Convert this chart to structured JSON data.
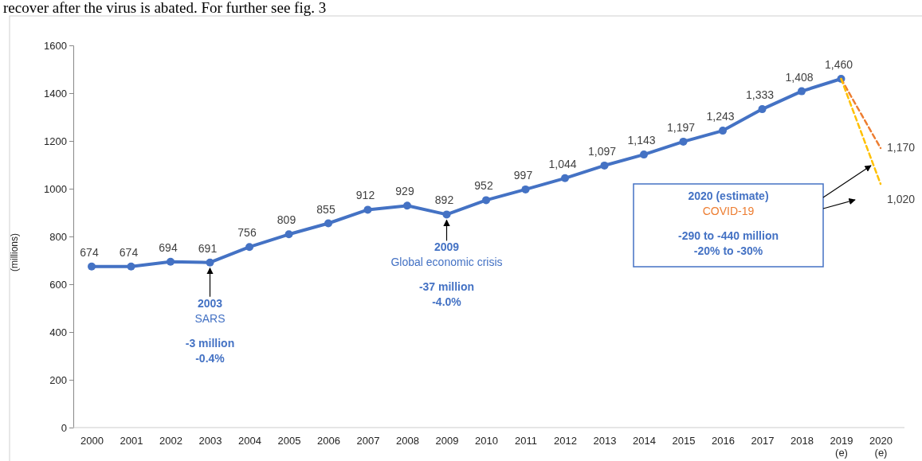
{
  "chart_data": {
    "type": "line",
    "ylabel": "(millions)",
    "categories": [
      "2000",
      "2001",
      "2002",
      "2003",
      "2004",
      "2005",
      "2006",
      "2007",
      "2008",
      "2009",
      "2010",
      "2011",
      "2012",
      "2013",
      "2014",
      "2015",
      "2016",
      "2017",
      "2018",
      "2019 (e)",
      "2020 (e)"
    ],
    "series": [
      {
        "color": "#4472c4",
        "marker": "circle",
        "line_style": "solid",
        "values": [
          674,
          674,
          694,
          691,
          756,
          809,
          855,
          912,
          929,
          892,
          952,
          997,
          1044,
          1097,
          1143,
          1197,
          1243,
          1333,
          1408,
          1460,
          null
        ],
        "value_labels": [
          "674",
          "674",
          "694",
          "691",
          "756",
          "809",
          "855",
          "912",
          "929",
          "892",
          "952",
          "997",
          "1,044",
          "1,097",
          "1,143",
          "1,197",
          "1,243",
          "1,333",
          "1,408",
          "1,460",
          null
        ]
      },
      {
        "color": "#ed7d31",
        "marker": "none",
        "line_style": "dashed",
        "values": [
          null,
          null,
          null,
          null,
          null,
          null,
          null,
          null,
          null,
          null,
          null,
          null,
          null,
          null,
          null,
          null,
          null,
          null,
          null,
          1460,
          1170
        ],
        "value_labels": [
          null,
          null,
          null,
          null,
          null,
          null,
          null,
          null,
          null,
          null,
          null,
          null,
          null,
          null,
          null,
          null,
          null,
          null,
          null,
          null,
          "1,170"
        ]
      },
      {
        "color": "#ffc000",
        "marker": "none",
        "line_style": "dashed",
        "values": [
          null,
          null,
          null,
          null,
          null,
          null,
          null,
          null,
          null,
          null,
          null,
          null,
          null,
          null,
          null,
          null,
          null,
          null,
          null,
          1460,
          1020
        ],
        "value_labels": [
          null,
          null,
          null,
          null,
          null,
          null,
          null,
          null,
          null,
          null,
          null,
          null,
          null,
          null,
          null,
          null,
          null,
          null,
          null,
          null,
          "1,020"
        ]
      }
    ],
    "ylim": [
      0,
      1600
    ],
    "yticks": [
      0,
      200,
      400,
      600,
      800,
      1000,
      1200,
      1400,
      1600
    ],
    "grid": false,
    "annotations": [
      "recover after the virus is abated. For further see fig. 3",
      {
        "text": "2003\nSARS\n\n-3 million\n-0.4%",
        "x": "2003",
        "y": 691
      },
      {
        "text": "2009\nGlobal economic crisis\n\n-37 million\n-4.0%",
        "x": "2009",
        "y": 892
      },
      "2020 (estimate)\nCOVID-19\n\n-290 to -440 million\n-20% to -30%"
    ]
  }
}
